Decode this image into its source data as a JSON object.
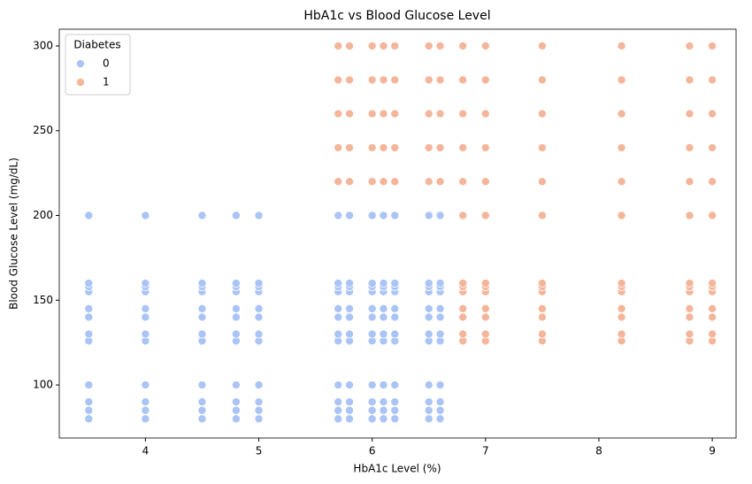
{
  "chart_data": {
    "type": "scatter",
    "title": "HbA1c vs Blood Glucose Level",
    "x_label": "HbA1c Level (%)",
    "y_label": "Blood Glucose Level (mg/dL)",
    "legend_title": "Diabetes",
    "legend_position": "upper left",
    "grid": false,
    "xlim": [
      3.24,
      9.21
    ],
    "xticks": [
      4,
      5,
      6,
      7,
      8,
      9
    ],
    "ylim": [
      68.7,
      309.9
    ],
    "yticks": [
      100,
      150,
      200,
      250,
      300
    ],
    "series": [
      {
        "name": "0",
        "color": "#aac4f5",
        "x": [
          3.5,
          3.5,
          3.5,
          3.5,
          3.5,
          3.5,
          3.5,
          3.5,
          3.5,
          3.5,
          3.5,
          3.5,
          4,
          4,
          4,
          4,
          4,
          4,
          4,
          4,
          4,
          4,
          4,
          4,
          4.5,
          4.5,
          4.5,
          4.5,
          4.5,
          4.5,
          4.5,
          4.5,
          4.5,
          4.5,
          4.5,
          4.5,
          4.8,
          4.8,
          4.8,
          4.8,
          4.8,
          4.8,
          4.8,
          4.8,
          4.8,
          4.8,
          4.8,
          4.8,
          5,
          5,
          5,
          5,
          5,
          5,
          5,
          5,
          5,
          5,
          5,
          5,
          5.7,
          5.7,
          5.7,
          5.7,
          5.7,
          5.7,
          5.7,
          5.7,
          5.7,
          5.7,
          5.7,
          5.7,
          5.8,
          5.8,
          5.8,
          5.8,
          5.8,
          5.8,
          5.8,
          5.8,
          5.8,
          5.8,
          5.8,
          5.8,
          6,
          6,
          6,
          6,
          6,
          6,
          6,
          6,
          6,
          6,
          6,
          6,
          6.1,
          6.1,
          6.1,
          6.1,
          6.1,
          6.1,
          6.1,
          6.1,
          6.1,
          6.1,
          6.1,
          6.1,
          6.2,
          6.2,
          6.2,
          6.2,
          6.2,
          6.2,
          6.2,
          6.2,
          6.2,
          6.2,
          6.2,
          6.2,
          6.5,
          6.5,
          6.5,
          6.5,
          6.5,
          6.5,
          6.5,
          6.5,
          6.5,
          6.5,
          6.5,
          6.5,
          6.6,
          6.6,
          6.6,
          6.6,
          6.6,
          6.6,
          6.6,
          6.6,
          6.6,
          6.6,
          6.6,
          6.6
        ],
        "values": [
          80,
          85,
          90,
          100,
          126,
          130,
          140,
          145,
          155,
          158,
          160,
          200,
          80,
          85,
          90,
          100,
          126,
          130,
          140,
          145,
          155,
          158,
          160,
          200,
          80,
          85,
          90,
          100,
          126,
          130,
          140,
          145,
          155,
          158,
          160,
          200,
          80,
          85,
          90,
          100,
          126,
          130,
          140,
          145,
          155,
          158,
          160,
          200,
          80,
          85,
          90,
          100,
          126,
          130,
          140,
          145,
          155,
          158,
          160,
          200,
          80,
          85,
          90,
          100,
          126,
          130,
          140,
          145,
          155,
          158,
          160,
          200,
          80,
          85,
          90,
          100,
          126,
          130,
          140,
          145,
          155,
          158,
          160,
          200,
          80,
          85,
          90,
          100,
          126,
          130,
          140,
          145,
          155,
          158,
          160,
          200,
          80,
          85,
          90,
          100,
          126,
          130,
          140,
          145,
          155,
          158,
          160,
          200,
          80,
          85,
          90,
          100,
          126,
          130,
          140,
          145,
          155,
          158,
          160,
          200,
          80,
          85,
          90,
          100,
          126,
          130,
          140,
          145,
          155,
          158,
          160,
          200,
          80,
          85,
          90,
          100,
          126,
          130,
          140,
          145,
          155,
          158,
          160,
          200
        ]
      },
      {
        "name": "1",
        "color": "#f4b69b",
        "x": [
          5.7,
          5.7,
          5.7,
          5.7,
          5.7,
          5.8,
          5.8,
          5.8,
          5.8,
          5.8,
          6,
          6,
          6,
          6,
          6,
          6.1,
          6.1,
          6.1,
          6.1,
          6.1,
          6.2,
          6.2,
          6.2,
          6.2,
          6.2,
          6.5,
          6.5,
          6.5,
          6.5,
          6.5,
          6.6,
          6.6,
          6.6,
          6.6,
          6.6,
          6.8,
          6.8,
          6.8,
          6.8,
          6.8,
          7,
          7,
          7,
          7,
          7,
          7.5,
          7.5,
          7.5,
          7.5,
          7.5,
          8.2,
          8.2,
          8.2,
          8.2,
          8.2,
          8.8,
          8.8,
          8.8,
          8.8,
          8.8,
          9,
          9,
          9,
          9,
          9,
          6.8,
          6.8,
          6.8,
          6.8,
          6.8,
          6.8,
          6.8,
          6.8,
          7,
          7,
          7,
          7,
          7,
          7,
          7,
          7,
          7.5,
          7.5,
          7.5,
          7.5,
          7.5,
          7.5,
          7.5,
          7.5,
          8.2,
          8.2,
          8.2,
          8.2,
          8.2,
          8.2,
          8.2,
          8.2,
          8.8,
          8.8,
          8.8,
          8.8,
          8.8,
          8.8,
          8.8,
          8.8,
          9,
          9,
          9,
          9,
          9,
          9,
          9,
          9
        ],
        "values": [
          220,
          240,
          260,
          280,
          300,
          220,
          240,
          260,
          280,
          300,
          220,
          240,
          260,
          280,
          300,
          220,
          240,
          260,
          280,
          300,
          220,
          240,
          260,
          280,
          300,
          220,
          240,
          260,
          280,
          300,
          220,
          240,
          260,
          280,
          300,
          220,
          240,
          260,
          280,
          300,
          220,
          240,
          260,
          280,
          300,
          220,
          240,
          260,
          280,
          300,
          220,
          240,
          260,
          280,
          300,
          220,
          240,
          260,
          280,
          300,
          220,
          240,
          260,
          280,
          300,
          126,
          130,
          140,
          145,
          155,
          158,
          160,
          200,
          126,
          130,
          140,
          145,
          155,
          158,
          160,
          200,
          126,
          130,
          140,
          145,
          155,
          158,
          160,
          200,
          126,
          130,
          140,
          145,
          155,
          158,
          160,
          200,
          126,
          130,
          140,
          145,
          155,
          158,
          160,
          200,
          126,
          130,
          140,
          145,
          155,
          158,
          160,
          200
        ]
      }
    ]
  }
}
